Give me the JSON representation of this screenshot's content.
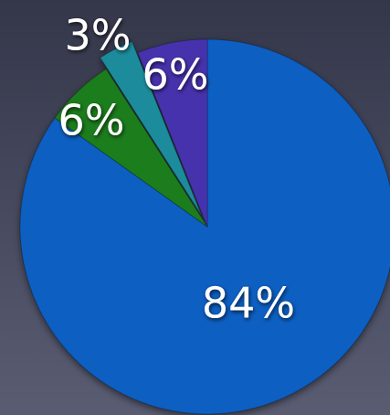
{
  "chart_data": {
    "type": "pie",
    "values": [
      84,
      6,
      3,
      6
    ],
    "value_labels": [
      "84%",
      "6%",
      "3%",
      "6%"
    ],
    "colors": [
      "#0b5fc2",
      "#1e7d1e",
      "#1a8c9c",
      "#4633ad"
    ]
  }
}
